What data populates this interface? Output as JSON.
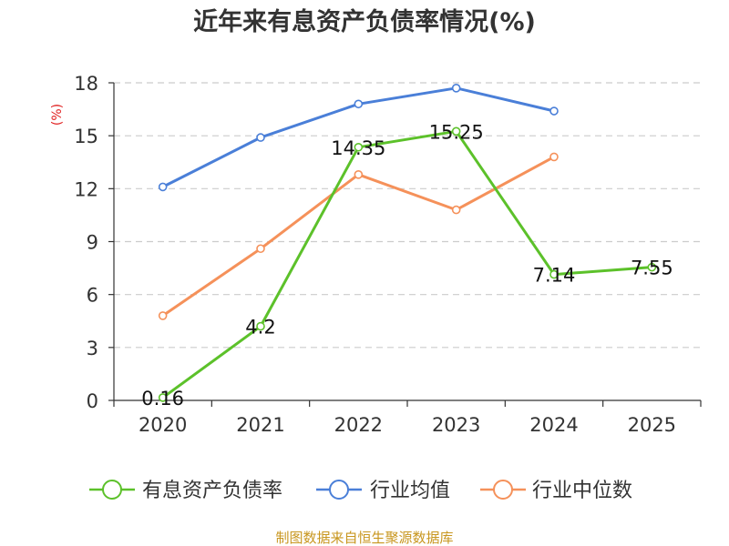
{
  "chart_data": {
    "type": "line",
    "title": "近年来有息资产负债率情况(%)",
    "ylabel": "(%)",
    "xlabel": "",
    "categories": [
      "2020",
      "2021",
      "2022",
      "2023",
      "2024",
      "2025"
    ],
    "y_ticks": [
      "0",
      "3",
      "6",
      "9",
      "12",
      "15",
      "18"
    ],
    "ylim": [
      0,
      18
    ],
    "grid": true,
    "legend_position": "bottom",
    "series": [
      {
        "name": "有息资产负债率",
        "color": "#5cc12a",
        "values": [
          0.16,
          4.2,
          14.35,
          15.25,
          7.14,
          7.55
        ],
        "data_labels": [
          "0.16",
          "4.2",
          "14.35",
          "15.25",
          "7.14",
          "7.55"
        ]
      },
      {
        "name": "行业均值",
        "color": "#4a7fd8",
        "values": [
          12.1,
          14.9,
          16.8,
          17.7,
          16.4,
          null
        ]
      },
      {
        "name": "行业中位数",
        "color": "#f5915a",
        "values": [
          4.8,
          8.6,
          12.8,
          10.8,
          13.8,
          null
        ]
      }
    ]
  },
  "source": "制图数据来自恒生聚源数据库"
}
